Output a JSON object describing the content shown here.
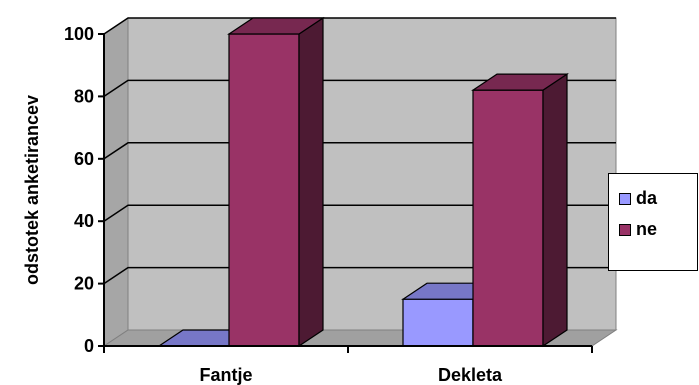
{
  "chart_data": {
    "type": "bar",
    "categories": [
      "Fantje",
      "Dekleta"
    ],
    "series": [
      {
        "name": "da",
        "values": [
          0,
          15
        ],
        "color": "#9999FF"
      },
      {
        "name": "ne",
        "values": [
          100,
          82
        ],
        "color": "#993366"
      }
    ],
    "ylabel": "odstotek anketirancev",
    "xlabel": "",
    "ylim": [
      0,
      100
    ],
    "yticks": [
      0,
      20,
      40,
      60,
      80,
      100
    ],
    "grid": true,
    "legend_position": "right",
    "style": "3d-clustered-column"
  }
}
